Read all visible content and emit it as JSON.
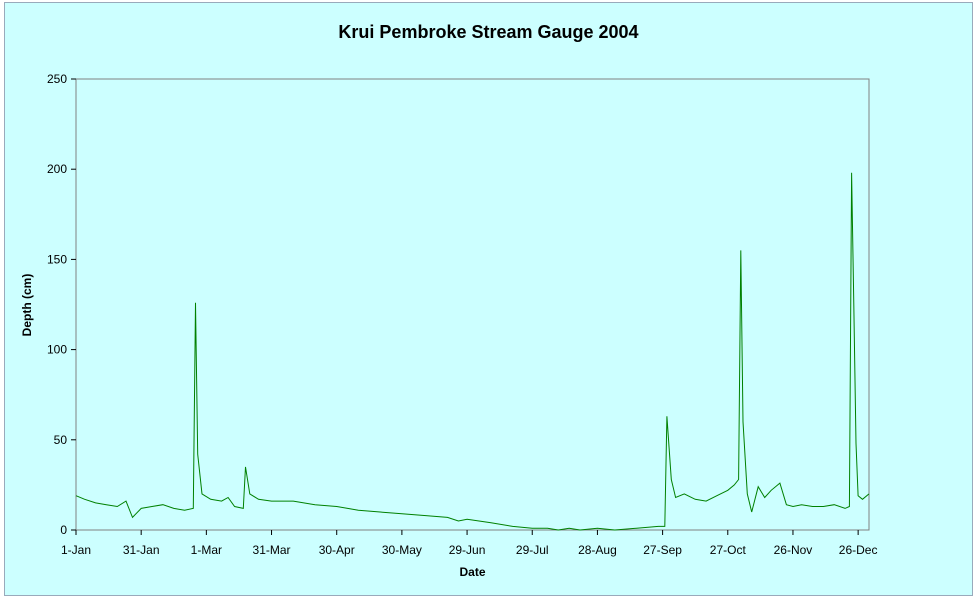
{
  "chart_data": {
    "type": "line",
    "title": "Krui Pembroke Stream Gauge 2004",
    "xlabel": "Date",
    "ylabel": "Depth (cm)",
    "ylim": [
      0,
      250
    ],
    "yticks": [
      0,
      50,
      100,
      150,
      200,
      250
    ],
    "xlim": [
      "2004-01-01",
      "2004-12-31"
    ],
    "xticks": [
      "1-Jan",
      "31-Jan",
      "1-Mar",
      "31-Mar",
      "30-Apr",
      "30-May",
      "29-Jun",
      "29-Jul",
      "28-Aug",
      "27-Sep",
      "27-Oct",
      "26-Nov",
      "26-Dec"
    ],
    "grid": false,
    "legend": "none",
    "colors": {
      "series": "#008000",
      "background": "#ccffff",
      "axis": "#808080"
    },
    "series": [
      {
        "x": [
          "2004-01-01",
          "2004-01-05",
          "2004-01-10",
          "2004-01-15",
          "2004-01-20",
          "2004-01-24",
          "2004-01-27",
          "2004-01-31",
          "2004-02-05",
          "2004-02-10",
          "2004-02-15",
          "2004-02-20",
          "2004-02-24",
          "2004-02-25",
          "2004-02-26",
          "2004-02-28",
          "2004-03-03",
          "2004-03-08",
          "2004-03-11",
          "2004-03-14",
          "2004-03-18",
          "2004-03-19",
          "2004-03-21",
          "2004-03-25",
          "2004-03-31",
          "2004-04-10",
          "2004-04-20",
          "2004-04-30",
          "2004-05-10",
          "2004-05-20",
          "2004-05-30",
          "2004-06-10",
          "2004-06-20",
          "2004-06-25",
          "2004-06-29",
          "2004-07-10",
          "2004-07-20",
          "2004-07-29",
          "2004-08-05",
          "2004-08-10",
          "2004-08-15",
          "2004-08-20",
          "2004-08-28",
          "2004-09-05",
          "2004-09-15",
          "2004-09-25",
          "2004-09-28",
          "2004-09-29",
          "2004-10-01",
          "2004-10-03",
          "2004-10-07",
          "2004-10-12",
          "2004-10-17",
          "2004-10-22",
          "2004-10-27",
          "2004-10-30",
          "2004-11-01",
          "2004-11-02",
          "2004-11-03",
          "2004-11-05",
          "2004-11-07",
          "2004-11-10",
          "2004-11-13",
          "2004-11-16",
          "2004-11-20",
          "2004-11-23",
          "2004-11-26",
          "2004-11-30",
          "2004-12-05",
          "2004-12-10",
          "2004-12-15",
          "2004-12-20",
          "2004-12-22",
          "2004-12-23",
          "2004-12-24",
          "2004-12-25",
          "2004-12-26",
          "2004-12-28",
          "2004-12-31"
        ],
        "y": [
          19,
          17,
          15,
          14,
          13,
          16,
          7,
          12,
          13,
          14,
          12,
          11,
          12,
          126,
          42,
          20,
          17,
          16,
          18,
          13,
          12,
          35,
          20,
          17,
          16,
          16,
          14,
          13,
          11,
          10,
          9,
          8,
          7,
          5,
          6,
          4,
          2,
          1,
          1,
          0,
          1,
          0,
          1,
          0,
          1,
          2,
          2,
          63,
          28,
          18,
          20,
          17,
          16,
          19,
          22,
          25,
          28,
          155,
          60,
          20,
          10,
          24,
          18,
          22,
          26,
          14,
          13,
          14,
          13,
          13,
          14,
          12,
          13,
          198,
          125,
          48,
          19,
          17,
          20
        ]
      }
    ]
  }
}
